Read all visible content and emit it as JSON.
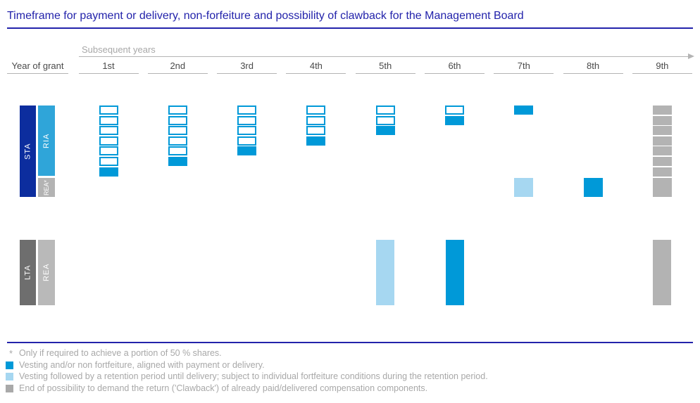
{
  "title": "Timeframe for payment or delivery, non-forfeiture and possibility of clawback for the Management Board",
  "header": {
    "year_of_grant": "Year of grant",
    "subsequent_years": "Subsequent years",
    "columns": [
      "1st",
      "2nd",
      "3rd",
      "4th",
      "5th",
      "6th",
      "7th",
      "8th",
      "9th"
    ]
  },
  "diagram": {
    "row1": {
      "labels": {
        "sta": "STA",
        "ria": "RIA",
        "rea": "REA*"
      },
      "years": [
        {
          "year": "1st",
          "boxes": [
            "o",
            "o",
            "o",
            "o",
            "o",
            "o",
            "f"
          ]
        },
        {
          "year": "2nd",
          "boxes": [
            "o",
            "o",
            "o",
            "o",
            "o",
            "f"
          ]
        },
        {
          "year": "3rd",
          "boxes": [
            "o",
            "o",
            "o",
            "o",
            "f"
          ]
        },
        {
          "year": "4th",
          "boxes": [
            "o",
            "o",
            "o",
            "f"
          ]
        },
        {
          "year": "5th",
          "boxes": [
            "o",
            "o",
            "f"
          ]
        },
        {
          "year": "6th",
          "boxes": [
            "o",
            "f"
          ]
        },
        {
          "year": "7th",
          "boxes": [
            "f"
          ],
          "rea_cell": "light-blue"
        },
        {
          "year": "8th",
          "boxes": [],
          "rea_cell": "fill-blue"
        },
        {
          "year": "9th",
          "boxes": [
            "g",
            "g",
            "g",
            "g",
            "g",
            "g",
            "g"
          ],
          "rea_cell": "gray"
        }
      ]
    },
    "row2": {
      "labels": {
        "lta": "LTA",
        "rea": "REA"
      },
      "years": [
        {
          "year": "5th",
          "bar": "light-blue"
        },
        {
          "year": "6th",
          "bar": "fill-blue"
        },
        {
          "year": "9th",
          "bar": "gray"
        }
      ]
    }
  },
  "legend": [
    {
      "marker": "*",
      "text": "Only if required to achieve a portion of 50 % shares."
    },
    {
      "marker": "square",
      "color": "fill-blue",
      "text": "Vesting and/or non fortfeiture, aligned with payment or delivery."
    },
    {
      "marker": "square",
      "color": "light-blue",
      "text": "Vesting followed by a retention period until delivery; subject to individual fortfeiture conditions during the retention period."
    },
    {
      "marker": "square",
      "color": "legend-gray",
      "text": "End of possibility to demand the return ('Clawback') of already paid/delivered compensation components."
    }
  ],
  "colors": {
    "title-blue": "#2323ab",
    "dark-blue": "#0c2d9e",
    "medium-blue": "#2fa5d9",
    "fill-blue": "#0099d8",
    "light-blue": "#a6d7f1",
    "gray": "#b3b3b3",
    "legend-gray": "#a9a9a9",
    "dark-gray": "#6e6e6e",
    "light-gray-bar": "#b9b9b9",
    "text-gray": "#a8a8a8",
    "header-text": "#4a4a4a",
    "line-gray": "#b4b4b4"
  }
}
